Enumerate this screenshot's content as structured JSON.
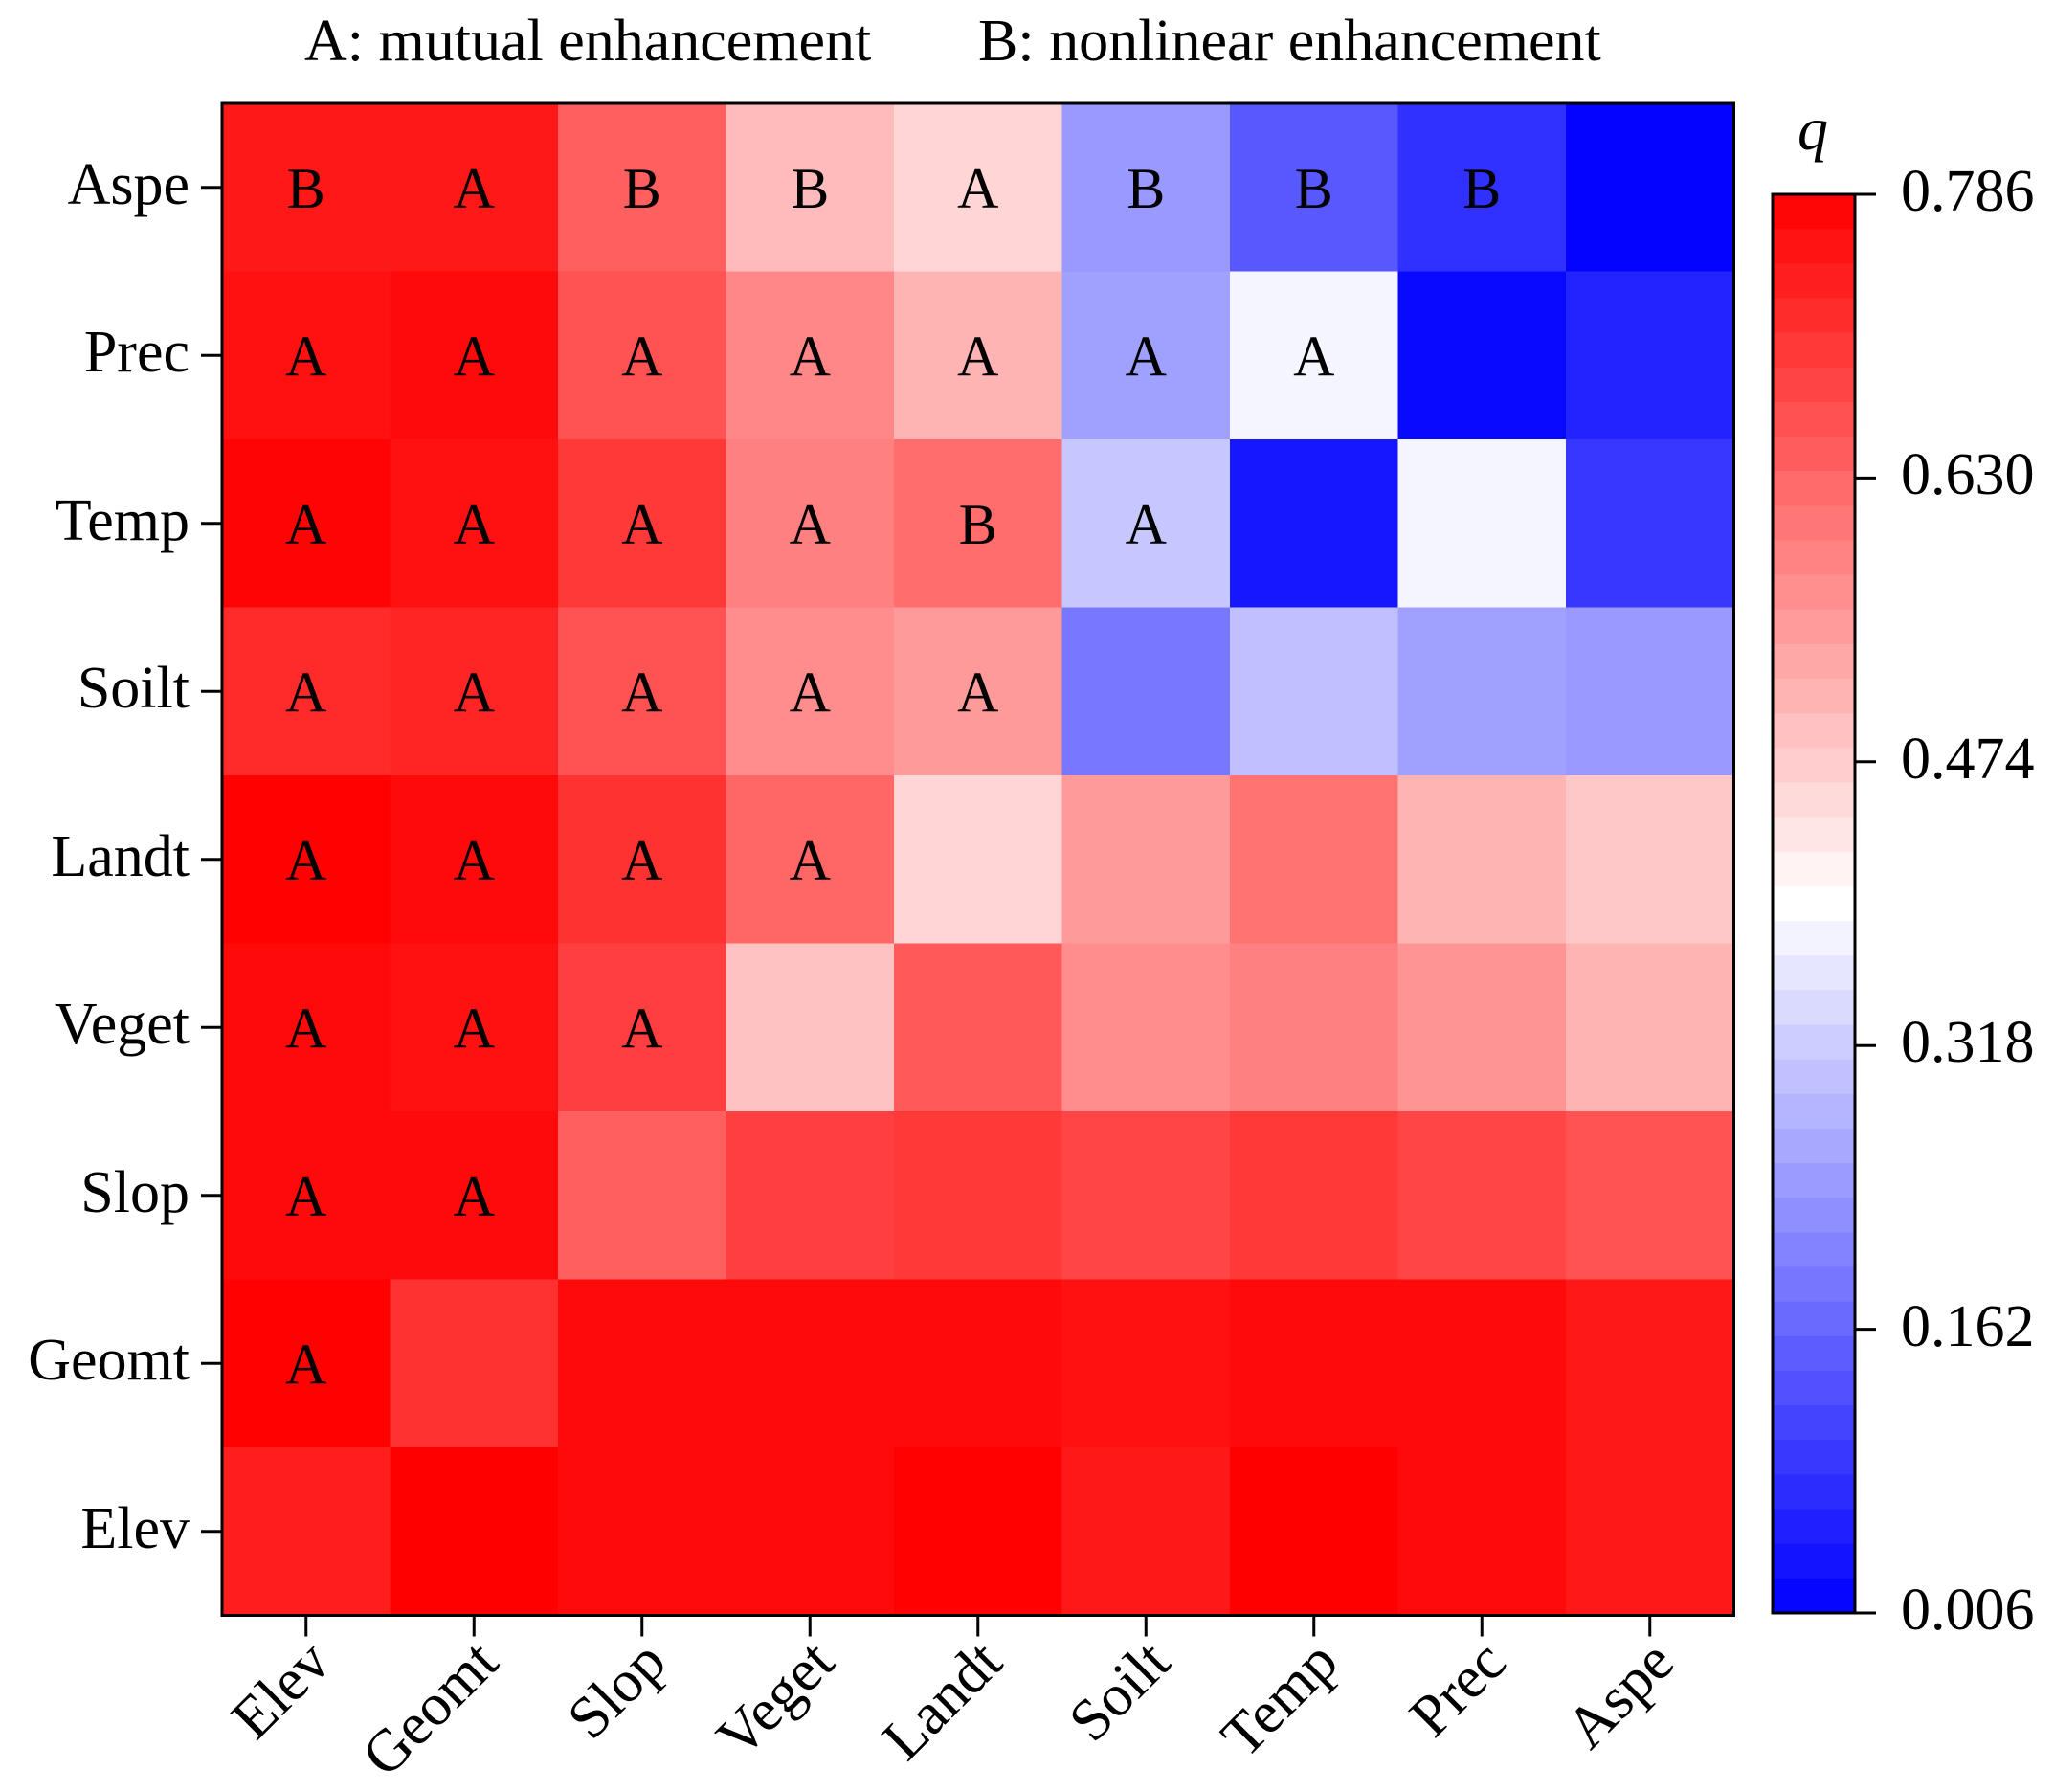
{
  "chart_data": {
    "type": "heatmap",
    "title": "",
    "legend_notes": [
      "A: mutual enhancement",
      "B: nonlinear enhancement"
    ],
    "x_categories": [
      "Elev",
      "Geomt",
      "Slop",
      "Veget",
      "Landt",
      "Soilt",
      "Temp",
      "Prec",
      "Aspe"
    ],
    "y_categories": [
      "Aspe",
      "Prec",
      "Temp",
      "Soilt",
      "Landt",
      "Veget",
      "Slop",
      "Geomt",
      "Elev"
    ],
    "values": [
      [
        0.75,
        0.75,
        0.64,
        0.5,
        0.46,
        0.24,
        0.14,
        0.08,
        0.01
      ],
      [
        0.76,
        0.77,
        0.66,
        0.58,
        0.51,
        0.25,
        0.38,
        0.02,
        0.06
      ],
      [
        0.78,
        0.76,
        0.7,
        0.59,
        0.62,
        0.31,
        0.04,
        0.38,
        0.09
      ],
      [
        0.72,
        0.73,
        0.66,
        0.57,
        0.55,
        0.19,
        0.3,
        0.25,
        0.24
      ],
      [
        0.785,
        0.77,
        0.71,
        0.63,
        0.46,
        0.55,
        0.61,
        0.51,
        0.48
      ],
      [
        0.77,
        0.76,
        0.69,
        0.49,
        0.65,
        0.57,
        0.59,
        0.56,
        0.51
      ],
      [
        0.77,
        0.77,
        0.64,
        0.69,
        0.7,
        0.68,
        0.7,
        0.68,
        0.66
      ],
      [
        0.785,
        0.71,
        0.77,
        0.77,
        0.77,
        0.76,
        0.77,
        0.77,
        0.75
      ],
      [
        0.74,
        0.786,
        0.77,
        0.77,
        0.785,
        0.75,
        0.786,
        0.77,
        0.75
      ]
    ],
    "annotations": [
      [
        "B",
        "A",
        "B",
        "B",
        "A",
        "B",
        "B",
        "B",
        ""
      ],
      [
        "A",
        "A",
        "A",
        "A",
        "A",
        "A",
        "A",
        "",
        ""
      ],
      [
        "A",
        "A",
        "A",
        "A",
        "B",
        "A",
        "",
        "",
        ""
      ],
      [
        "A",
        "A",
        "A",
        "A",
        "A",
        "",
        "",
        "",
        ""
      ],
      [
        "A",
        "A",
        "A",
        "A",
        "",
        "",
        "",
        "",
        ""
      ],
      [
        "A",
        "A",
        "A",
        "",
        "",
        "",
        "",
        "",
        ""
      ],
      [
        "A",
        "A",
        "",
        "",
        "",
        "",
        "",
        "",
        ""
      ],
      [
        "A",
        "",
        "",
        "",
        "",
        "",
        "",
        "",
        ""
      ],
      [
        "",
        "",
        "",
        "",
        "",
        "",
        "",
        "",
        ""
      ]
    ],
    "colorbar": {
      "title": "q",
      "range": [
        0.006,
        0.786
      ],
      "ticks": [
        0.006,
        0.162,
        0.318,
        0.474,
        0.63,
        0.786
      ],
      "tick_labels": [
        "0.006",
        "0.162",
        "0.318",
        "0.474",
        "0.630",
        "0.786"
      ],
      "low_color": "#0000ff",
      "mid_color": "#ffffff",
      "high_color": "#ff0000"
    }
  }
}
